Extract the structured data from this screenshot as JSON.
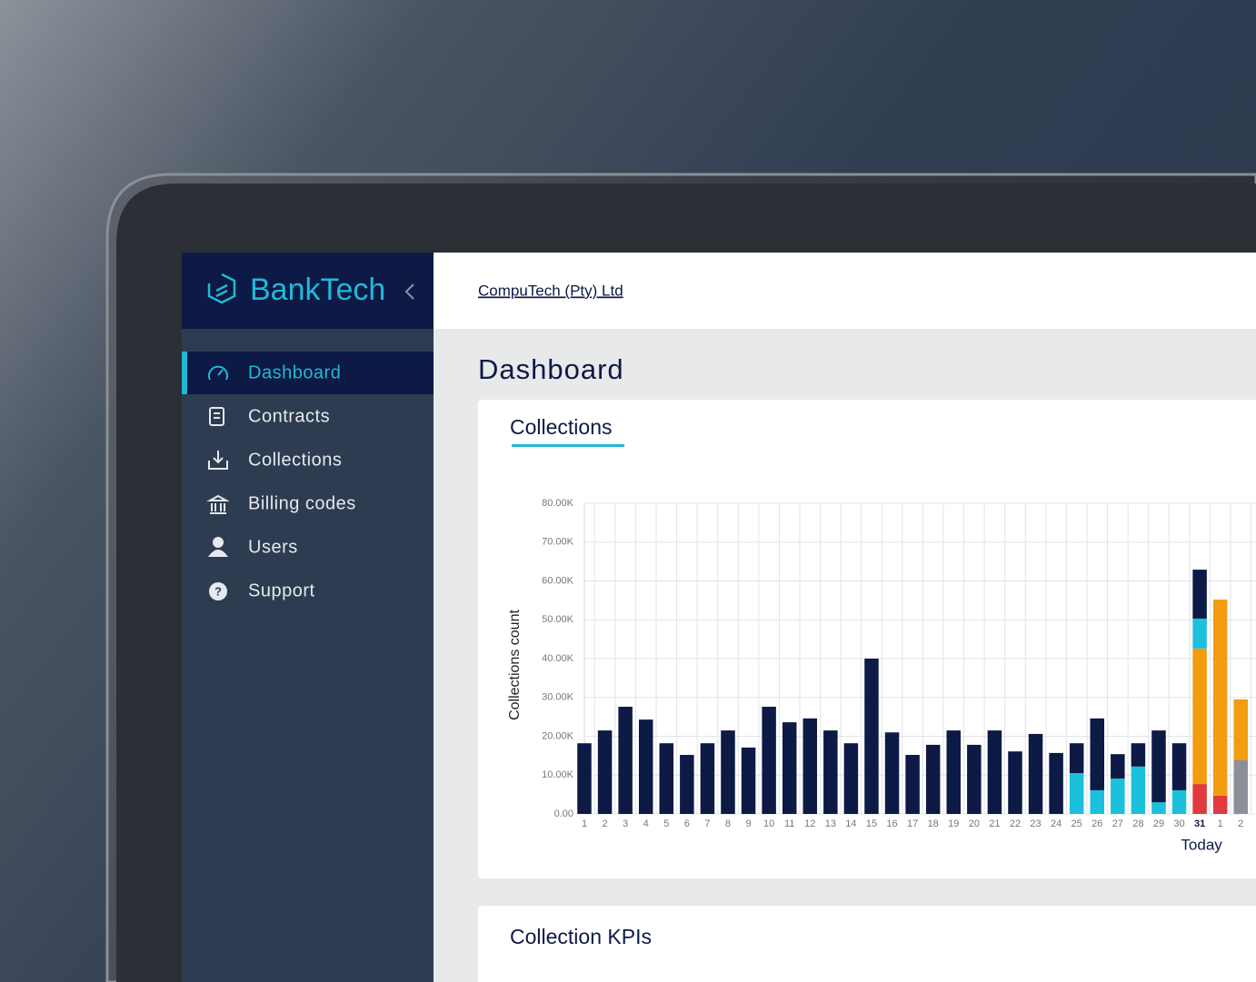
{
  "brand": "BankTech",
  "company": "CompuTech (Pty) Ltd",
  "nav": [
    "Dashboard",
    "Contracts",
    "Collections",
    "Billing codes",
    "Users",
    "Support"
  ],
  "page_title": "Dashboard",
  "collections_card": {
    "title": "Collections"
  },
  "kpi_card": {
    "title": "Collection KPIs"
  },
  "chart_data": {
    "type": "stacked_bar",
    "y_label": "Collections count",
    "categories": [
      "1",
      "2",
      "3",
      "4",
      "5",
      "6",
      "7",
      "8",
      "9",
      "10",
      "11",
      "12",
      "13",
      "14",
      "15",
      "16",
      "17",
      "18",
      "19",
      "20",
      "21",
      "22",
      "23",
      "24",
      "25",
      "26",
      "27",
      "28",
      "29",
      "30",
      "31",
      "1",
      "2"
    ],
    "ylim": [
      0,
      80000
    ],
    "yticks": [
      {
        "value": 0,
        "label": "0.00"
      },
      {
        "value": 10000,
        "label": "10.00K"
      },
      {
        "value": 20000,
        "label": "20.00K"
      },
      {
        "value": 30000,
        "label": "30.00K"
      },
      {
        "value": 40000,
        "label": "40.00K"
      },
      {
        "value": 50000,
        "label": "50.00K"
      },
      {
        "value": 60000,
        "label": "60.00K"
      },
      {
        "value": 70000,
        "label": "70.00K"
      },
      {
        "value": 80000,
        "label": "80.00K"
      }
    ],
    "grid": true,
    "annotation": {
      "text": "Today",
      "category": 30
    },
    "series": [
      {
        "color": "#e03a3e",
        "values": [
          null,
          null,
          null,
          null,
          null,
          null,
          null,
          null,
          null,
          null,
          null,
          null,
          null,
          null,
          null,
          null,
          null,
          null,
          null,
          null,
          null,
          null,
          null,
          null,
          null,
          null,
          null,
          null,
          null,
          null,
          7700,
          4700,
          null
        ]
      },
      {
        "color": "#8a8f99",
        "values": [
          null,
          null,
          null,
          null,
          null,
          null,
          null,
          null,
          null,
          null,
          null,
          null,
          null,
          null,
          null,
          null,
          null,
          null,
          null,
          null,
          null,
          null,
          null,
          null,
          null,
          null,
          null,
          null,
          null,
          null,
          null,
          null,
          13800
        ]
      },
      {
        "color": "#f39c0f",
        "values": [
          null,
          null,
          null,
          null,
          null,
          null,
          null,
          null,
          null,
          null,
          null,
          null,
          null,
          null,
          null,
          null,
          null,
          null,
          null,
          null,
          null,
          null,
          null,
          null,
          null,
          null,
          null,
          null,
          null,
          null,
          34900,
          50500,
          15700
        ]
      },
      {
        "color": "#1cbfdc",
        "values": [
          null,
          null,
          null,
          null,
          null,
          null,
          null,
          null,
          null,
          null,
          null,
          null,
          null,
          null,
          null,
          null,
          null,
          null,
          null,
          null,
          null,
          null,
          null,
          null,
          10500,
          6100,
          9100,
          12200,
          3000,
          6100,
          7700,
          null,
          null
        ]
      },
      {
        "color": "#0d1a45",
        "values": [
          18200,
          21500,
          27600,
          24300,
          18200,
          15200,
          18200,
          21500,
          17100,
          27600,
          23600,
          24600,
          21500,
          18200,
          40000,
          21000,
          15200,
          17800,
          21500,
          17800,
          21500,
          16100,
          20600,
          15700,
          7700,
          18500,
          6300,
          6000,
          18500,
          12100,
          12600,
          null,
          null
        ]
      }
    ]
  }
}
